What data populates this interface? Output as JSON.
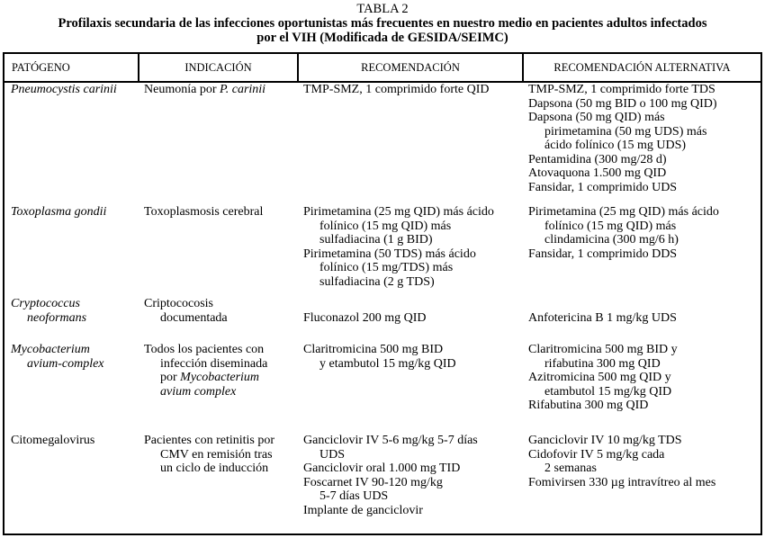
{
  "title": {
    "label": "TABLA 2",
    "line1": "Profilaxis secundaria de las infecciones oportunistas más frecuentes en nuestro medio en pacientes adultos infectados",
    "line2": "por el VIH (Modificada de GESIDA/SEIMC)"
  },
  "headers": [
    "PATÓGENO",
    "INDICACIÓN",
    "RECOMENDACIÓN",
    "RECOMENDACIÓN ALTERNATIVA"
  ],
  "rows": [
    {
      "cells": [
        [
          {
            "parts": [
              {
                "t": "Pneumocystis carinii",
                "i": true
              }
            ]
          }
        ],
        [
          {
            "parts": [
              {
                "t": "Neumonía por "
              },
              {
                "t": "P. carinii",
                "i": true
              }
            ]
          }
        ],
        [
          {
            "parts": [
              {
                "t": "TMP-SMZ, 1 comprimido forte QID"
              }
            ]
          }
        ],
        [
          {
            "parts": [
              {
                "t": "TMP-SMZ, 1 comprimido forte TDS"
              }
            ]
          },
          {
            "parts": [
              {
                "t": "Dapsona (50 mg BID o 100 mg QID)"
              }
            ]
          },
          {
            "parts": [
              {
                "t": "Dapsona (50 mg QID) más"
              }
            ]
          },
          {
            "indent": true,
            "parts": [
              {
                "t": "pirimetamina (50 mg UDS) más"
              }
            ]
          },
          {
            "indent": true,
            "parts": [
              {
                "t": "ácido folínico (15 mg UDS)"
              }
            ]
          },
          {
            "parts": [
              {
                "t": "Pentamidina (300 mg/28 d)"
              }
            ]
          },
          {
            "parts": [
              {
                "t": "Atovaquona 1.500 mg QID"
              }
            ]
          },
          {
            "parts": [
              {
                "t": "Fansidar, 1 comprimido UDS"
              }
            ]
          }
        ]
      ]
    },
    {
      "cells": [
        [
          {
            "parts": [
              {
                "t": "Toxoplasma gondii",
                "i": true
              }
            ]
          }
        ],
        [
          {
            "parts": [
              {
                "t": "Toxoplasmosis cerebral"
              }
            ]
          }
        ],
        [
          {
            "parts": [
              {
                "t": "Pirimetamina (25 mg QID) más ácido"
              }
            ]
          },
          {
            "indent": true,
            "parts": [
              {
                "t": "folínico (15 mg QID) más"
              }
            ]
          },
          {
            "indent": true,
            "parts": [
              {
                "t": "sulfadiacina (1 g BID)"
              }
            ]
          },
          {
            "parts": [
              {
                "t": "Pirimetamina (50 TDS) más ácido"
              }
            ]
          },
          {
            "indent": true,
            "parts": [
              {
                "t": "folínico (15 mg/TDS) más"
              }
            ]
          },
          {
            "indent": true,
            "parts": [
              {
                "t": "sulfadiacina (2 g TDS)"
              }
            ]
          }
        ],
        [
          {
            "parts": [
              {
                "t": "Pirimetamina (25 mg QID) más ácido"
              }
            ]
          },
          {
            "indent": true,
            "parts": [
              {
                "t": "folínico (15 mg QID) más"
              }
            ]
          },
          {
            "indent": true,
            "parts": [
              {
                "t": "clindamicina (300 mg/6 h)"
              }
            ]
          },
          {
            "parts": [
              {
                "t": "Fansidar, 1 comprimido DDS"
              }
            ]
          }
        ]
      ]
    },
    {
      "cells": [
        [
          {
            "parts": [
              {
                "t": "Cryptococcus",
                "i": true
              }
            ]
          },
          {
            "indent": true,
            "parts": [
              {
                "t": "neoformans",
                "i": true
              }
            ]
          }
        ],
        [
          {
            "parts": [
              {
                "t": "Criptococosis"
              }
            ]
          },
          {
            "indent": true,
            "parts": [
              {
                "t": "documentada"
              }
            ]
          }
        ],
        [
          {
            "parts": [
              {
                "t": ""
              }
            ]
          },
          {
            "parts": [
              {
                "t": "Fluconazol 200 mg QID"
              }
            ]
          }
        ],
        [
          {
            "parts": [
              {
                "t": ""
              }
            ]
          },
          {
            "parts": [
              {
                "t": "Anfotericina B 1 mg/kg UDS"
              }
            ]
          }
        ]
      ]
    },
    {
      "cells": [
        [
          {
            "parts": [
              {
                "t": "Mycobacterium",
                "i": true
              }
            ]
          },
          {
            "indent": true,
            "parts": [
              {
                "t": "avium-complex",
                "i": true
              }
            ]
          }
        ],
        [
          {
            "parts": [
              {
                "t": "Todos los pacientes con"
              }
            ]
          },
          {
            "indent": true,
            "parts": [
              {
                "t": "infección diseminada"
              }
            ]
          },
          {
            "indent": true,
            "parts": [
              {
                "t": "por "
              },
              {
                "t": "Mycobacterium",
                "i": true
              }
            ]
          },
          {
            "indent": true,
            "parts": [
              {
                "t": "avium complex",
                "i": true
              }
            ]
          }
        ],
        [
          {
            "parts": [
              {
                "t": "Claritromicina 500 mg BID"
              }
            ]
          },
          {
            "indent": true,
            "parts": [
              {
                "t": "y etambutol 15 mg/kg QID"
              }
            ]
          }
        ],
        [
          {
            "parts": [
              {
                "t": "Claritromicina 500 mg BID y"
              }
            ]
          },
          {
            "indent": true,
            "parts": [
              {
                "t": "rifabutina 300 mg QID"
              }
            ]
          },
          {
            "parts": [
              {
                "t": "Azitromicina 500 mg QID y"
              }
            ]
          },
          {
            "indent": true,
            "parts": [
              {
                "t": "etambutol 15 mg/kg QID"
              }
            ]
          },
          {
            "parts": [
              {
                "t": "Rifabutina 300 mg QID"
              }
            ]
          }
        ]
      ]
    },
    {
      "cells": [
        [
          {
            "parts": [
              {
                "t": "Citomegalovirus"
              }
            ]
          }
        ],
        [
          {
            "parts": [
              {
                "t": "Pacientes con retinitis por"
              }
            ]
          },
          {
            "indent": true,
            "parts": [
              {
                "t": "CMV en remisión tras"
              }
            ]
          },
          {
            "indent": true,
            "parts": [
              {
                "t": "un ciclo de inducción"
              }
            ]
          }
        ],
        [
          {
            "parts": [
              {
                "t": "Ganciclovir IV 5-6 mg/kg 5-7 días"
              }
            ]
          },
          {
            "indent": true,
            "parts": [
              {
                "t": "UDS"
              }
            ]
          },
          {
            "parts": [
              {
                "t": "Ganciclovir oral 1.000 mg TID"
              }
            ]
          },
          {
            "parts": [
              {
                "t": "Foscarnet IV 90-120 mg/kg"
              }
            ]
          },
          {
            "indent": true,
            "parts": [
              {
                "t": "5-7 días UDS"
              }
            ]
          },
          {
            "parts": [
              {
                "t": "Implante de ganciclovir"
              }
            ]
          }
        ],
        [
          {
            "parts": [
              {
                "t": "Ganciclovir IV 10 mg/kg TDS"
              }
            ]
          },
          {
            "parts": [
              {
                "t": "Cidofovir IV 5 mg/kg cada"
              }
            ]
          },
          {
            "indent": true,
            "parts": [
              {
                "t": "2 semanas"
              }
            ]
          },
          {
            "parts": [
              {
                "t": "Fomivirsen 330 µg intravítreo al mes"
              }
            ]
          }
        ]
      ]
    }
  ]
}
